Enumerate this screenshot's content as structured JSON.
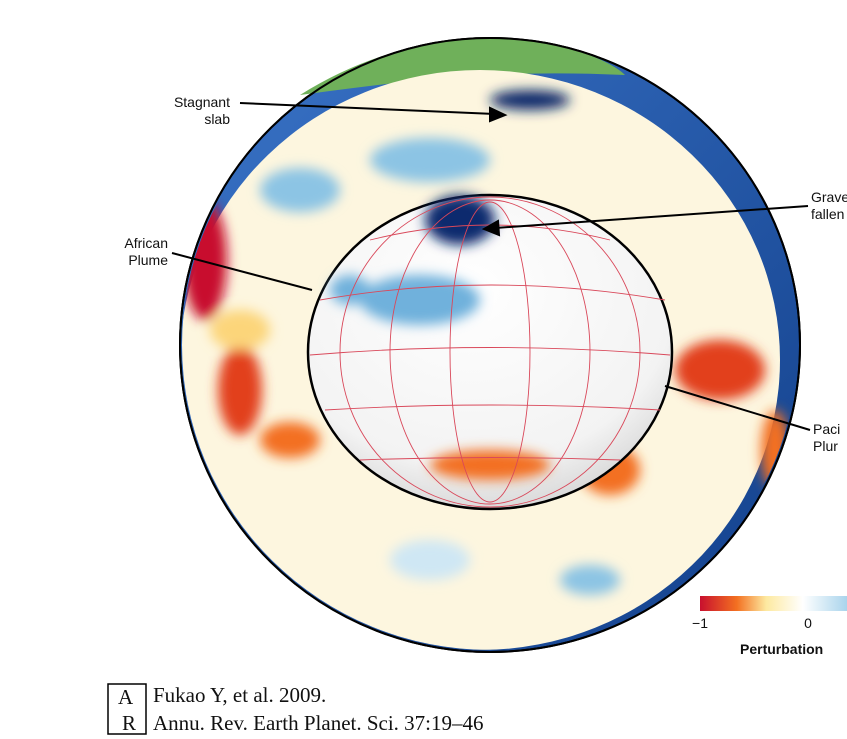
{
  "labels": {
    "stagnant_slab": [
      "Stagnant",
      "slab"
    ],
    "african_plume": [
      "African",
      "Plume"
    ],
    "graveyard": [
      "Grave",
      "fallen"
    ],
    "pacific_plume": [
      "Paci",
      "Plur"
    ]
  },
  "colorbar": {
    "min_label": "−1",
    "mid_label": "0",
    "title": "Perturbation"
  },
  "citation": {
    "logo": [
      "A",
      "R"
    ],
    "lines": [
      "Fukao Y, et al. 2009.",
      "Annu. Rev. Earth Planet. Sci. 37:19–46"
    ]
  }
}
